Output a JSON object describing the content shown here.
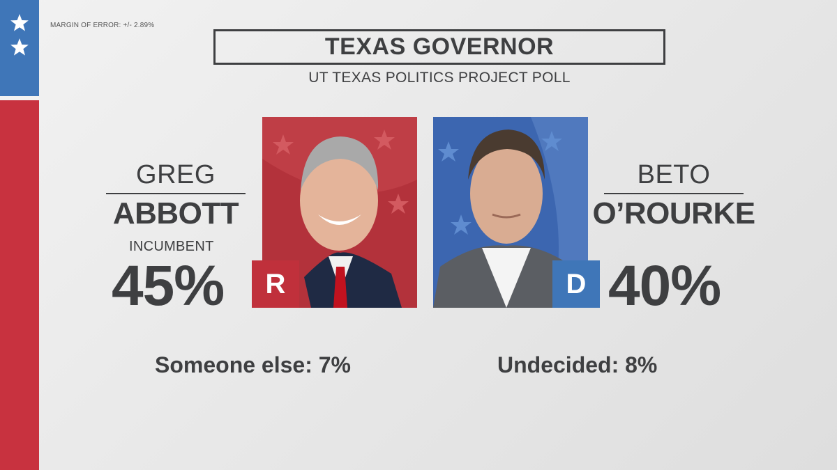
{
  "header": {
    "margin_of_error": "MARGIN OF ERROR: +/- 2.89%",
    "title": "TEXAS GOVERNOR",
    "subtitle": "UT TEXAS POLITICS PROJECT POLL"
  },
  "candidates": {
    "left": {
      "first_name": "GREG",
      "last_name": "ABBOTT",
      "note": "INCUMBENT",
      "percent": "45%",
      "party_badge": "R",
      "party_color": "#c0303b"
    },
    "right": {
      "first_name": "BETO",
      "last_name": "O’ROURKE",
      "percent": "40%",
      "party_badge": "D",
      "party_color": "#3f76b8"
    }
  },
  "others": {
    "someone_else": "Someone else: 7%",
    "undecided": "Undecided: 8%"
  },
  "colors": {
    "flag_blue": "#3f76b8",
    "flag_red": "#c8323f",
    "text": "#3e3f41"
  },
  "icons": [
    "star-icon",
    "star-icon"
  ]
}
